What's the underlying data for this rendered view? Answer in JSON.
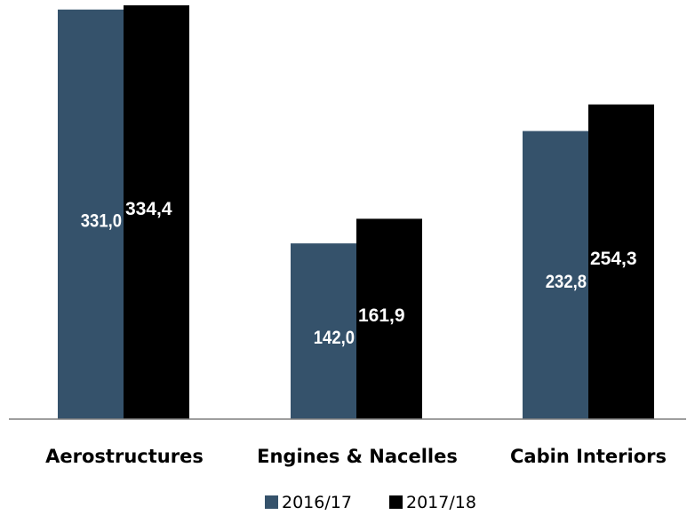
{
  "chart_data": {
    "type": "bar",
    "categories": [
      "Aerostructures",
      "Engines & Nacelles",
      "Cabin Interiors"
    ],
    "series": [
      {
        "name": "2016/17",
        "values": [
          331.0,
          142.0,
          232.8
        ],
        "labels": [
          "331,0",
          "142,0",
          "232,8"
        ],
        "color": "#35526B"
      },
      {
        "name": "2017/18",
        "values": [
          334.4,
          161.9,
          254.3
        ],
        "labels": [
          "334,4",
          "161,9",
          "254,3"
        ],
        "color": "#000000"
      }
    ],
    "ylim": [
      0,
      334.4
    ],
    "grid": false,
    "legend_position": "bottom",
    "axis_color": "#7F7F7F",
    "label_color": "#FFFFFF",
    "text_color": "#000000"
  }
}
